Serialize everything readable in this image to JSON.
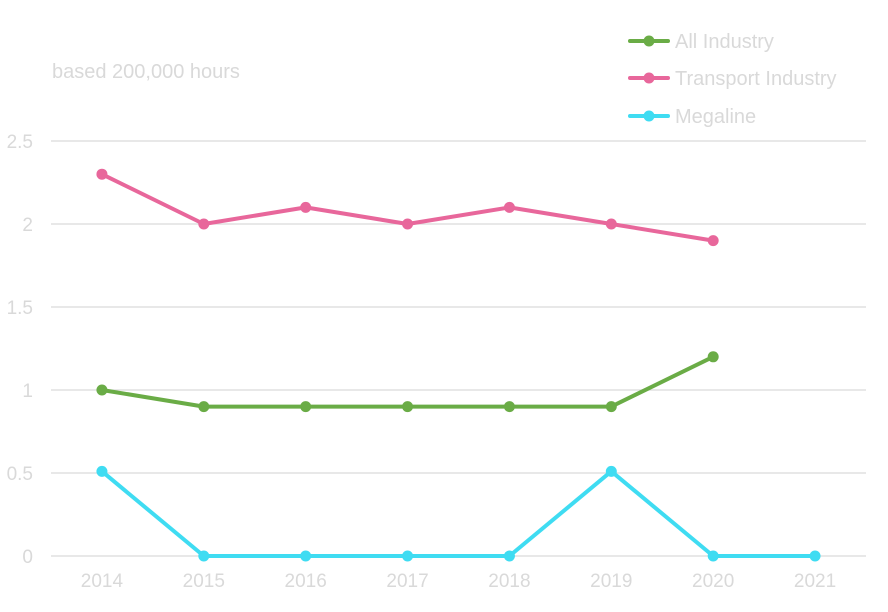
{
  "chart_data": {
    "type": "line",
    "title": "",
    "annotation": "based 200,000 hours",
    "xlabel": "",
    "ylabel": "",
    "categories": [
      "2014",
      "2015",
      "2016",
      "2017",
      "2018",
      "2019",
      "2020",
      "2021"
    ],
    "ylim": [
      0,
      2.5
    ],
    "yticks": [
      "0",
      "0.5",
      "1",
      "1.5",
      "2",
      "2.5"
    ],
    "grid": true,
    "legend_position": "top-right",
    "series": [
      {
        "name": "All Industry",
        "color": "#6aac46",
        "values": [
          1.0,
          0.9,
          0.9,
          0.9,
          0.9,
          0.9,
          1.2,
          null
        ]
      },
      {
        "name": "Transport Industry",
        "color": "#e8679b",
        "values": [
          2.3,
          2.0,
          2.1,
          2.0,
          2.1,
          2.0,
          1.9,
          null
        ]
      },
      {
        "name": "Megaline",
        "color": "#3fdcf2",
        "values": [
          0.51,
          0.0,
          0.0,
          0.0,
          0.0,
          0.51,
          0.0,
          0.0
        ]
      }
    ]
  }
}
